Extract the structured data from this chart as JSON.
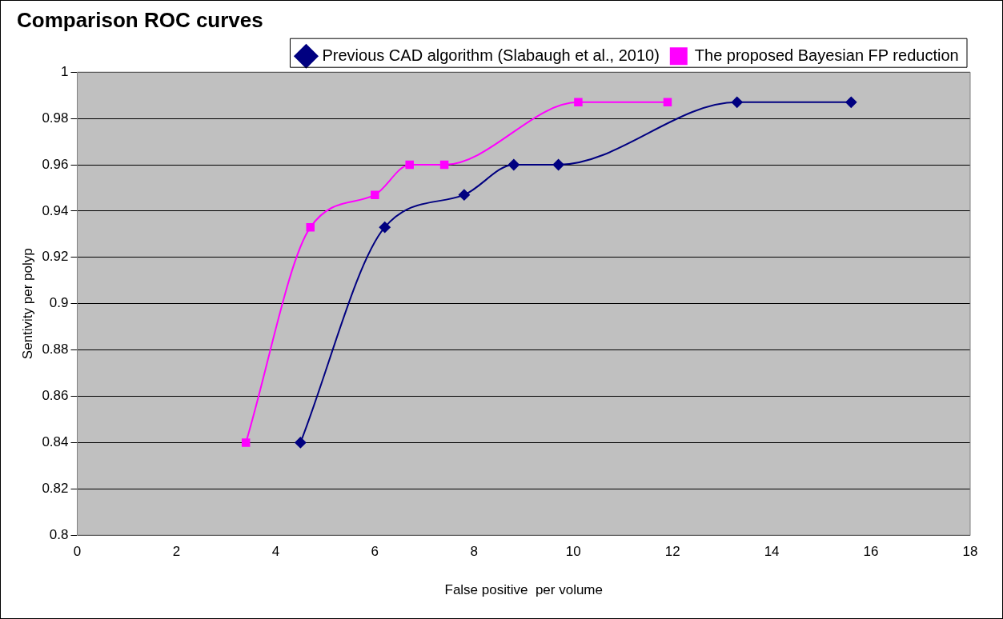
{
  "chart_data": {
    "type": "line",
    "title": "Comparison ROC curves",
    "xlabel": "False positive  per volume",
    "ylabel": "Sentivity per polyp",
    "xlim": [
      0,
      18
    ],
    "xticks": [
      0,
      2,
      4,
      6,
      8,
      10,
      12,
      14,
      16,
      18
    ],
    "ylim": [
      0.8,
      1
    ],
    "yticks": [
      0.8,
      0.82,
      0.84,
      0.86,
      0.88,
      0.9,
      0.92,
      0.94,
      0.96,
      0.98,
      1
    ],
    "grid": "y",
    "legend": "top right",
    "series": [
      {
        "name": "Previous CAD algorithm (Slabaugh et al., 2010)",
        "color": "#000080",
        "marker": "diamond",
        "x": [
          4.5,
          6.2,
          7.8,
          8.8,
          9.7,
          13.3,
          15.6
        ],
        "values": [
          0.84,
          0.933,
          0.947,
          0.96,
          0.96,
          0.987,
          0.987
        ]
      },
      {
        "name": "The proposed Bayesian FP reduction",
        "color": "#ff00ff",
        "marker": "square",
        "x": [
          3.4,
          4.7,
          6.0,
          6.7,
          7.4,
          10.1,
          11.9
        ],
        "values": [
          0.84,
          0.933,
          0.947,
          0.96,
          0.96,
          0.987,
          0.987
        ]
      }
    ]
  }
}
